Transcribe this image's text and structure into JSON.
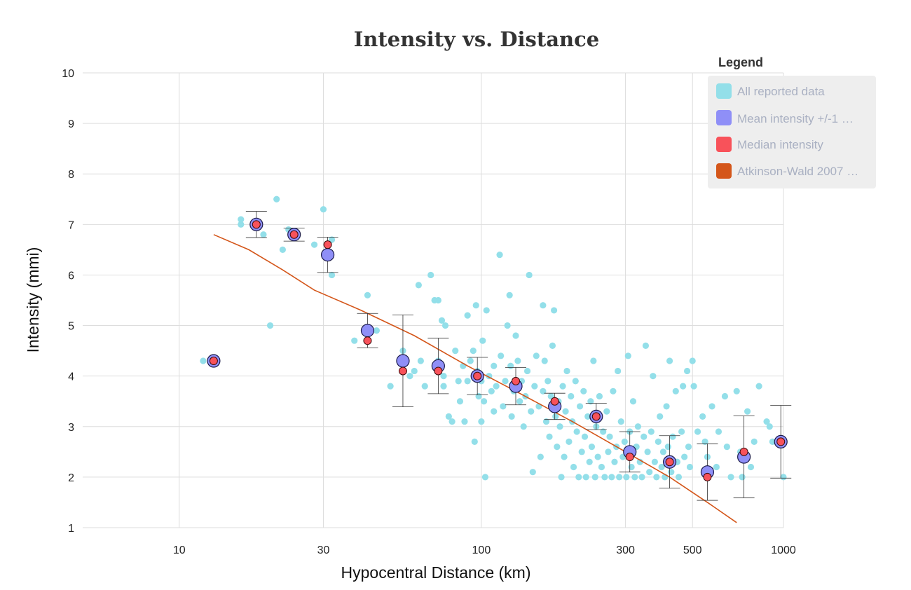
{
  "chart_data": {
    "type": "scatter",
    "title": "Intensity vs. Distance",
    "xlabel": "Hypocentral Distance (km)",
    "ylabel": "Intensity (mmi)",
    "x_scale": "log",
    "xlim": [
      5,
      1000
    ],
    "ylim": [
      1,
      10
    ],
    "x_ticks": [
      10,
      30,
      100,
      300,
      500,
      1000
    ],
    "y_ticks": [
      1,
      2,
      3,
      4,
      5,
      6,
      7,
      8,
      9,
      10
    ],
    "grid": true,
    "legend": {
      "title": "Legend",
      "placement": "top-right",
      "entries": [
        {
          "label": "All reported data",
          "color": "#93dfe9"
        },
        {
          "label": "Mean intensity +/-1 …",
          "color": "#8f8ff7"
        },
        {
          "label": "Median intensity",
          "color": "#f8525a"
        },
        {
          "label": "Atkinson-Wald 2007 …",
          "color": "#d4561a"
        }
      ]
    },
    "series": [
      {
        "name": "All reported data",
        "kind": "scatter",
        "color": "#93dfe9",
        "points": [
          [
            12,
            4.3
          ],
          [
            16,
            7.1
          ],
          [
            16,
            7.0
          ],
          [
            18,
            7.0
          ],
          [
            19,
            6.8
          ],
          [
            20,
            5.0
          ],
          [
            21,
            7.5
          ],
          [
            22,
            6.5
          ],
          [
            23,
            6.9
          ],
          [
            24,
            6.8
          ],
          [
            28,
            6.6
          ],
          [
            30,
            7.3
          ],
          [
            31,
            6.4
          ],
          [
            32,
            6.7
          ],
          [
            32,
            6.0
          ],
          [
            38,
            4.7
          ],
          [
            42,
            5.6
          ],
          [
            45,
            4.9
          ],
          [
            50,
            3.8
          ],
          [
            55,
            4.5
          ],
          [
            55,
            4.1
          ],
          [
            58,
            4.0
          ],
          [
            60,
            4.1
          ],
          [
            62,
            5.8
          ],
          [
            63,
            4.3
          ],
          [
            65,
            3.8
          ],
          [
            68,
            6.0
          ],
          [
            70,
            5.5
          ],
          [
            72,
            5.5
          ],
          [
            72,
            4.3
          ],
          [
            74,
            5.1
          ],
          [
            75,
            4.0
          ],
          [
            75,
            3.8
          ],
          [
            76,
            5.0
          ],
          [
            78,
            3.2
          ],
          [
            80,
            3.1
          ],
          [
            82,
            4.5
          ],
          [
            84,
            3.9
          ],
          [
            85,
            3.5
          ],
          [
            87,
            4.2
          ],
          [
            88,
            3.1
          ],
          [
            90,
            5.2
          ],
          [
            90,
            3.9
          ],
          [
            92,
            4.3
          ],
          [
            94,
            4.5
          ],
          [
            95,
            2.7
          ],
          [
            96,
            5.4
          ],
          [
            97,
            4.1
          ],
          [
            98,
            3.6
          ],
          [
            100,
            3.9
          ],
          [
            100,
            3.1
          ],
          [
            101,
            4.7
          ],
          [
            102,
            3.5
          ],
          [
            103,
            2.0
          ],
          [
            104,
            5.3
          ],
          [
            106,
            4.0
          ],
          [
            108,
            3.7
          ],
          [
            110,
            4.2
          ],
          [
            110,
            3.3
          ],
          [
            112,
            3.8
          ],
          [
            115,
            6.4
          ],
          [
            116,
            4.4
          ],
          [
            118,
            3.4
          ],
          [
            120,
            3.9
          ],
          [
            122,
            5.0
          ],
          [
            124,
            5.6
          ],
          [
            125,
            4.2
          ],
          [
            126,
            3.2
          ],
          [
            128,
            3.7
          ],
          [
            130,
            4.8
          ],
          [
            132,
            4.3
          ],
          [
            134,
            3.5
          ],
          [
            136,
            3.9
          ],
          [
            138,
            3.0
          ],
          [
            140,
            3.6
          ],
          [
            142,
            4.1
          ],
          [
            144,
            6.0
          ],
          [
            146,
            3.3
          ],
          [
            148,
            2.1
          ],
          [
            150,
            3.8
          ],
          [
            152,
            4.4
          ],
          [
            155,
            3.4
          ],
          [
            157,
            2.4
          ],
          [
            160,
            5.4
          ],
          [
            160,
            3.7
          ],
          [
            162,
            4.3
          ],
          [
            164,
            3.1
          ],
          [
            166,
            3.9
          ],
          [
            168,
            2.8
          ],
          [
            170,
            3.6
          ],
          [
            172,
            4.6
          ],
          [
            174,
            5.3
          ],
          [
            176,
            3.2
          ],
          [
            178,
            2.6
          ],
          [
            180,
            3.5
          ],
          [
            182,
            3.0
          ],
          [
            184,
            2.0
          ],
          [
            186,
            3.8
          ],
          [
            188,
            2.4
          ],
          [
            190,
            3.3
          ],
          [
            192,
            4.1
          ],
          [
            195,
            2.7
          ],
          [
            198,
            3.6
          ],
          [
            200,
            3.1
          ],
          [
            202,
            2.2
          ],
          [
            205,
            3.9
          ],
          [
            207,
            2.9
          ],
          [
            210,
            2.0
          ],
          [
            212,
            3.4
          ],
          [
            215,
            2.5
          ],
          [
            218,
            3.7
          ],
          [
            220,
            2.8
          ],
          [
            222,
            2.0
          ],
          [
            225,
            3.2
          ],
          [
            228,
            2.3
          ],
          [
            230,
            3.5
          ],
          [
            232,
            2.6
          ],
          [
            235,
            4.3
          ],
          [
            238,
            2.0
          ],
          [
            240,
            3.0
          ],
          [
            243,
            2.4
          ],
          [
            246,
            3.6
          ],
          [
            250,
            2.2
          ],
          [
            253,
            2.9
          ],
          [
            256,
            2.0
          ],
          [
            260,
            3.3
          ],
          [
            263,
            2.5
          ],
          [
            266,
            2.8
          ],
          [
            270,
            2.0
          ],
          [
            273,
            3.7
          ],
          [
            276,
            2.3
          ],
          [
            280,
            2.6
          ],
          [
            283,
            4.1
          ],
          [
            286,
            2.0
          ],
          [
            290,
            3.1
          ],
          [
            294,
            2.4
          ],
          [
            298,
            2.7
          ],
          [
            302,
            2.0
          ],
          [
            306,
            4.4
          ],
          [
            310,
            2.9
          ],
          [
            314,
            2.2
          ],
          [
            318,
            3.5
          ],
          [
            322,
            2.0
          ],
          [
            326,
            2.6
          ],
          [
            330,
            3.0
          ],
          [
            335,
            2.3
          ],
          [
            340,
            2.0
          ],
          [
            345,
            2.8
          ],
          [
            350,
            4.6
          ],
          [
            355,
            2.5
          ],
          [
            360,
            2.1
          ],
          [
            365,
            2.9
          ],
          [
            370,
            4.0
          ],
          [
            375,
            2.3
          ],
          [
            380,
            2.0
          ],
          [
            385,
            2.7
          ],
          [
            390,
            3.2
          ],
          [
            395,
            2.2
          ],
          [
            400,
            2.5
          ],
          [
            405,
            2.0
          ],
          [
            410,
            3.4
          ],
          [
            415,
            2.6
          ],
          [
            420,
            4.3
          ],
          [
            425,
            2.1
          ],
          [
            430,
            2.8
          ],
          [
            440,
            3.7
          ],
          [
            445,
            2.3
          ],
          [
            450,
            2.0
          ],
          [
            460,
            2.9
          ],
          [
            465,
            3.8
          ],
          [
            470,
            2.4
          ],
          [
            480,
            4.1
          ],
          [
            485,
            2.6
          ],
          [
            490,
            2.2
          ],
          [
            500,
            4.3
          ],
          [
            505,
            3.8
          ],
          [
            520,
            2.9
          ],
          [
            540,
            3.2
          ],
          [
            550,
            2.7
          ],
          [
            560,
            2.4
          ],
          [
            580,
            3.4
          ],
          [
            600,
            2.2
          ],
          [
            610,
            2.9
          ],
          [
            640,
            3.6
          ],
          [
            650,
            2.6
          ],
          [
            670,
            2.0
          ],
          [
            700,
            3.7
          ],
          [
            720,
            2.5
          ],
          [
            730,
            2.0
          ],
          [
            760,
            3.3
          ],
          [
            780,
            2.2
          ],
          [
            800,
            2.7
          ],
          [
            830,
            3.8
          ],
          [
            880,
            3.1
          ],
          [
            900,
            3.0
          ],
          [
            920,
            2.7
          ],
          [
            1000,
            2.0
          ]
        ]
      },
      {
        "name": "Mean intensity +/-1 …",
        "kind": "mean_errorbars",
        "color": "#8f8ff7",
        "x": [
          13,
          18,
          24,
          31,
          42,
          55,
          72,
          97,
          130,
          175,
          240,
          310,
          420,
          560,
          740,
          980
        ],
        "y": [
          4.3,
          7.0,
          6.8,
          6.4,
          4.9,
          4.3,
          4.2,
          4.0,
          3.8,
          3.4,
          3.2,
          2.5,
          2.3,
          2.1,
          2.4,
          2.7
        ],
        "err": [
          0.0,
          0.26,
          0.13,
          0.35,
          0.34,
          0.91,
          0.55,
          0.37,
          0.37,
          0.26,
          0.26,
          0.4,
          0.52,
          0.56,
          0.81,
          0.72
        ]
      },
      {
        "name": "Median intensity",
        "kind": "scatter",
        "color": "#f8525a",
        "x": [
          13,
          18,
          24,
          31,
          42,
          55,
          72,
          97,
          130,
          175,
          240,
          310,
          420,
          560,
          740,
          980
        ],
        "y": [
          4.3,
          7.0,
          6.8,
          6.6,
          4.7,
          4.1,
          4.1,
          4.0,
          3.9,
          3.5,
          3.2,
          2.4,
          2.3,
          2.0,
          2.5,
          2.7
        ]
      },
      {
        "name": "Atkinson-Wald 2007 …",
        "kind": "line",
        "color": "#d4561a",
        "x": [
          13,
          17,
          22,
          28,
          40,
          60,
          90,
          130,
          200,
          300,
          420,
          560,
          700
        ],
        "y": [
          6.8,
          6.5,
          6.1,
          5.7,
          5.3,
          4.8,
          4.2,
          3.7,
          3.1,
          2.5,
          2.0,
          1.5,
          1.1
        ]
      }
    ]
  }
}
